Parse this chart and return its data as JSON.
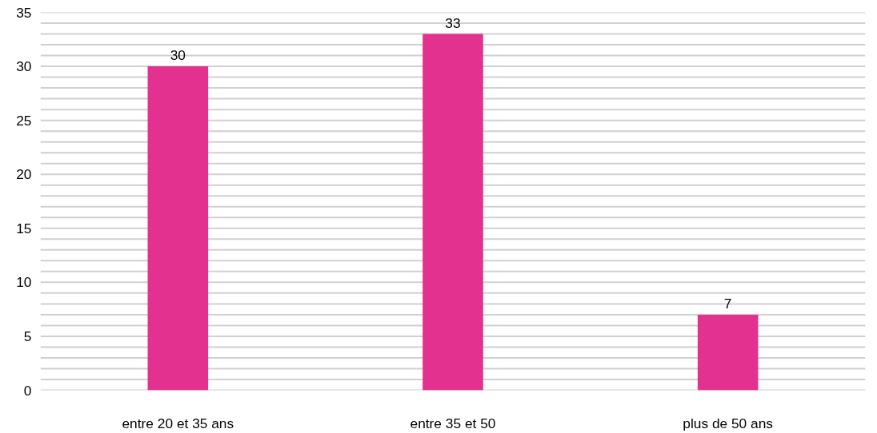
{
  "chart_data": {
    "type": "bar",
    "categories": [
      "entre 20 et 35 ans",
      "entre 35 et 50",
      "plus de 50 ans"
    ],
    "values": [
      30,
      33,
      7
    ],
    "color": "#e2318f",
    "data_labels": true,
    "grid": "y",
    "ylim": [
      0,
      35
    ],
    "yticks": [
      0,
      {
        "value": 1,
        "label": null
      },
      {
        "value": 2,
        "label": null
      },
      {
        "value": 3,
        "label": null
      },
      {
        "value": 4,
        "label": null
      },
      5,
      {
        "value": 6,
        "label": null
      },
      {
        "value": 7,
        "label": null
      },
      {
        "value": 8,
        "label": null
      },
      {
        "value": 9,
        "label": null
      },
      10,
      {
        "value": 11,
        "label": null
      },
      {
        "value": 12,
        "label": null
      },
      {
        "value": 13,
        "label": null
      },
      {
        "value": 14,
        "label": null
      },
      15,
      {
        "value": 16,
        "label": null
      },
      {
        "value": 17,
        "label": null
      },
      {
        "value": 18,
        "label": null
      },
      {
        "value": 19,
        "label": null
      },
      20,
      {
        "value": 21,
        "label": null
      },
      {
        "value": 22,
        "label": null
      },
      {
        "value": 23,
        "label": null
      },
      {
        "value": 24,
        "label": null
      },
      25,
      {
        "value": 26,
        "label": null
      },
      {
        "value": 27,
        "label": null
      },
      {
        "value": 28,
        "label": null
      },
      {
        "value": 29,
        "label": null
      },
      30,
      {
        "value": 31,
        "label": null
      },
      {
        "value": 32,
        "label": null
      },
      {
        "value": 33,
        "label": null
      },
      {
        "value": 34,
        "label": null
      },
      35
    ]
  }
}
